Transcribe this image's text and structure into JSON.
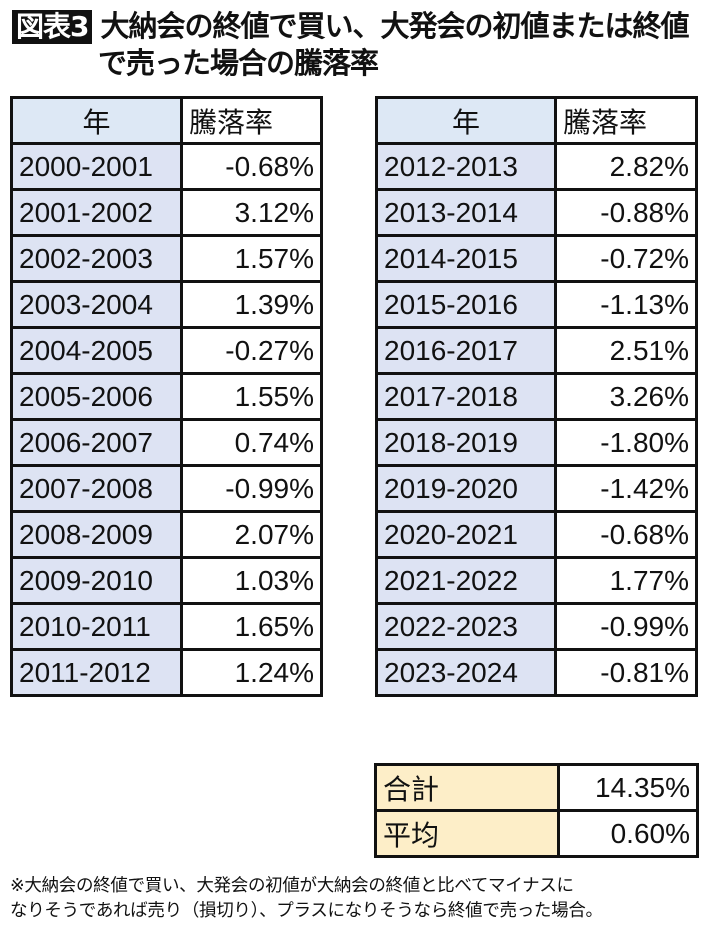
{
  "title": {
    "badge": "図表3",
    "line1": "大納会の終値で買い、大発会の初値または終値",
    "line2": "で売った場合の騰落率"
  },
  "headers": {
    "year": "年",
    "rate": "騰落率"
  },
  "left_rows": [
    {
      "year": "2000-2001",
      "rate": "-0.68%"
    },
    {
      "year": "2001-2002",
      "rate": "3.12%"
    },
    {
      "year": "2002-2003",
      "rate": "1.57%"
    },
    {
      "year": "2003-2004",
      "rate": "1.39%"
    },
    {
      "year": "2004-2005",
      "rate": "-0.27%"
    },
    {
      "year": "2005-2006",
      "rate": "1.55%"
    },
    {
      "year": "2006-2007",
      "rate": "0.74%"
    },
    {
      "year": "2007-2008",
      "rate": "-0.99%"
    },
    {
      "year": "2008-2009",
      "rate": "2.07%"
    },
    {
      "year": "2009-2010",
      "rate": "1.03%"
    },
    {
      "year": "2010-2011",
      "rate": "1.65%"
    },
    {
      "year": "2011-2012",
      "rate": "1.24%"
    }
  ],
  "right_rows": [
    {
      "year": "2012-2013",
      "rate": "2.82%"
    },
    {
      "year": "2013-2014",
      "rate": "-0.88%"
    },
    {
      "year": "2014-2015",
      "rate": "-0.72%"
    },
    {
      "year": "2015-2016",
      "rate": "-1.13%"
    },
    {
      "year": "2016-2017",
      "rate": "2.51%"
    },
    {
      "year": "2017-2018",
      "rate": "3.26%"
    },
    {
      "year": "2018-2019",
      "rate": "-1.80%"
    },
    {
      "year": "2019-2020",
      "rate": "-1.42%"
    },
    {
      "year": "2020-2021",
      "rate": "-0.68%"
    },
    {
      "year": "2021-2022",
      "rate": "1.77%"
    },
    {
      "year": "2022-2023",
      "rate": "-0.99%"
    },
    {
      "year": "2023-2024",
      "rate": "-0.81%"
    }
  ],
  "summary": {
    "total_label": "合計",
    "total": "14.35%",
    "average_label": "平均",
    "average": "0.60%"
  },
  "footnote": {
    "line1": "※大納会の終値で買い、大発会の初値が大納会の終値と比べてマイナスに",
    "line2": "なりそうであれば売り（損切り）、プラスになりそうなら終値で売った場合。"
  },
  "colors": {
    "year_cell": "#dde3f3",
    "header_cell": "#dde8f5",
    "summary_cell": "#fdeec8"
  }
}
